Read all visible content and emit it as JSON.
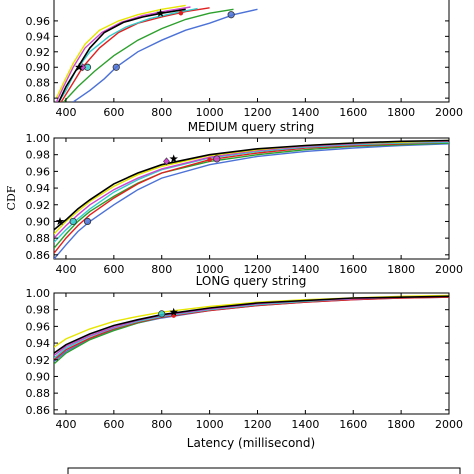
{
  "chart_data": [
    {
      "type": "line",
      "xlim": [
        350,
        2000
      ],
      "ylim": [
        0.855,
        1.0
      ],
      "xticks": [
        "400",
        "600",
        "800",
        "1000",
        "1200",
        "1400",
        "1600",
        "1800",
        "2000"
      ],
      "yticks": [
        "0.86",
        "0.88",
        "0.90",
        "0.92",
        "0.94",
        "0.96"
      ],
      "xlabel": "MEDIUM query string",
      "ylabel": "",
      "grid": false,
      "series": [
        {
          "color": "#4c72d8",
          "x": [
            430,
            500,
            560,
            610,
            700,
            800,
            900,
            1000,
            1100,
            1200
          ],
          "y": [
            0.855,
            0.87,
            0.885,
            0.9,
            0.92,
            0.935,
            0.948,
            0.957,
            0.968,
            0.975
          ],
          "marker": {
            "x": 610,
            "y": 0.9,
            "shape": "circle"
          },
          "marker2": {
            "x": 1090,
            "y": 0.968,
            "shape": "circle"
          }
        },
        {
          "color": "#2ca02c",
          "x": [
            390,
            450,
            520,
            600,
            700,
            800,
            900,
            1000,
            1100
          ],
          "y": [
            0.855,
            0.875,
            0.895,
            0.915,
            0.935,
            0.95,
            0.962,
            0.97,
            0.975
          ]
        },
        {
          "color": "#e02020",
          "x": [
            380,
            420,
            470,
            540,
            620,
            700,
            800,
            900,
            1000
          ],
          "y": [
            0.855,
            0.875,
            0.9,
            0.925,
            0.945,
            0.957,
            0.965,
            0.972,
            0.977
          ],
          "marker": {
            "x": 880,
            "y": 0.97,
            "shape": "dot"
          }
        },
        {
          "color": "#33cccc",
          "x": [
            370,
            400,
            440,
            500,
            580,
            650,
            750,
            850,
            950
          ],
          "y": [
            0.855,
            0.87,
            0.895,
            0.92,
            0.94,
            0.952,
            0.963,
            0.97,
            0.976
          ],
          "marker": {
            "x": 490,
            "y": 0.9,
            "shape": "circle"
          }
        },
        {
          "color": "#cc44cc",
          "x": [
            360,
            390,
            430,
            480,
            550,
            630,
            720,
            820,
            920
          ],
          "y": [
            0.855,
            0.875,
            0.9,
            0.925,
            0.945,
            0.958,
            0.967,
            0.973,
            0.978
          ],
          "marker": {
            "x": 470,
            "y": 0.9,
            "shape": "diamond"
          }
        },
        {
          "color": "#e6e600",
          "x": [
            360,
            390,
            430,
            480,
            540,
            620,
            700,
            800,
            900
          ],
          "y": [
            0.86,
            0.88,
            0.905,
            0.93,
            0.948,
            0.96,
            0.968,
            0.975,
            0.98
          ]
        },
        {
          "color": "#000000",
          "x": [
            370,
            400,
            450,
            500,
            560,
            640,
            720,
            800,
            900
          ],
          "y": [
            0.855,
            0.875,
            0.9,
            0.925,
            0.945,
            0.958,
            0.965,
            0.97,
            0.975
          ],
          "marker": {
            "x": 455,
            "y": 0.9,
            "shape": "star"
          },
          "marker2": {
            "x": 795,
            "y": 0.97,
            "shape": "star"
          }
        }
      ]
    },
    {
      "type": "line",
      "xlim": [
        350,
        2000
      ],
      "ylim": [
        0.855,
        1.0
      ],
      "xticks": [
        "400",
        "600",
        "800",
        "1000",
        "1200",
        "1400",
        "1600",
        "1800",
        "2000"
      ],
      "yticks": [
        "0.86",
        "0.88",
        "0.90",
        "0.92",
        "0.94",
        "0.96",
        "0.98",
        "1.00"
      ],
      "xlabel": "LONG query string",
      "ylabel": "CDF",
      "grid": false,
      "series": [
        {
          "color": "#4c72d8",
          "x": [
            350,
            400,
            450,
            500,
            600,
            700,
            800,
            1000,
            1200,
            1400,
            1600,
            1800,
            2000
          ],
          "y": [
            0.855,
            0.872,
            0.888,
            0.9,
            0.92,
            0.938,
            0.952,
            0.968,
            0.978,
            0.984,
            0.988,
            0.991,
            0.993
          ],
          "marker": {
            "x": 490,
            "y": 0.9,
            "shape": "circle"
          }
        },
        {
          "color": "#2ca02c",
          "x": [
            350,
            400,
            450,
            500,
            600,
            700,
            800,
            1000,
            1200,
            1400,
            1600,
            1800,
            2000
          ],
          "y": [
            0.868,
            0.885,
            0.9,
            0.912,
            0.93,
            0.946,
            0.958,
            0.972,
            0.98,
            0.986,
            0.99,
            0.992,
            0.994
          ]
        },
        {
          "color": "#e02020",
          "x": [
            350,
            400,
            450,
            500,
            600,
            700,
            800,
            1000,
            1200,
            1400,
            1600,
            1800,
            2000
          ],
          "y": [
            0.862,
            0.88,
            0.895,
            0.908,
            0.928,
            0.945,
            0.958,
            0.974,
            0.982,
            0.988,
            0.991,
            0.993,
            0.995
          ],
          "marker": {
            "x": 1000,
            "y": 0.974,
            "shape": "dot"
          }
        },
        {
          "color": "#33cccc",
          "x": [
            350,
            400,
            450,
            500,
            600,
            700,
            800,
            1000,
            1200,
            1400,
            1600,
            1800,
            2000
          ],
          "y": [
            0.875,
            0.89,
            0.903,
            0.915,
            0.935,
            0.95,
            0.962,
            0.976,
            0.984,
            0.989,
            0.992,
            0.994,
            0.995
          ],
          "marker": {
            "x": 430,
            "y": 0.9,
            "shape": "circle"
          }
        },
        {
          "color": "#cc44cc",
          "x": [
            350,
            400,
            450,
            500,
            600,
            700,
            800,
            1000,
            1200,
            1400,
            1600,
            1800,
            2000
          ],
          "y": [
            0.88,
            0.895,
            0.908,
            0.92,
            0.938,
            0.952,
            0.963,
            0.977,
            0.985,
            0.99,
            0.993,
            0.995,
            0.996
          ],
          "marker": {
            "x": 1030,
            "y": 0.975,
            "shape": "circle"
          },
          "marker2": {
            "x": 820,
            "y": 0.972,
            "shape": "diamond"
          }
        },
        {
          "color": "#e6e600",
          "x": [
            350,
            400,
            450,
            500,
            600,
            700,
            800,
            1000,
            1200,
            1400,
            1600,
            1800,
            2000
          ],
          "y": [
            0.885,
            0.9,
            0.912,
            0.924,
            0.942,
            0.956,
            0.966,
            0.979,
            0.986,
            0.991,
            0.994,
            0.995,
            0.997
          ]
        },
        {
          "color": "#000000",
          "x": [
            350,
            400,
            450,
            500,
            600,
            700,
            800,
            1000,
            1200,
            1400,
            1600,
            1800,
            2000
          ],
          "y": [
            0.89,
            0.902,
            0.915,
            0.926,
            0.945,
            0.958,
            0.968,
            0.98,
            0.987,
            0.991,
            0.994,
            0.996,
            0.997
          ],
          "marker": {
            "x": 375,
            "y": 0.9,
            "shape": "star"
          },
          "marker2": {
            "x": 850,
            "y": 0.975,
            "shape": "star"
          }
        }
      ]
    },
    {
      "type": "line",
      "xlim": [
        350,
        2000
      ],
      "ylim": [
        0.855,
        1.0
      ],
      "xticks": [
        "400",
        "600",
        "800",
        "1000",
        "1200",
        "1400",
        "1600",
        "1800",
        "2000"
      ],
      "yticks": [
        "0.86",
        "0.88",
        "0.90",
        "0.92",
        "0.94",
        "0.96",
        "0.98",
        "1.00"
      ],
      "xlabel": "Latency (millisecond)",
      "ylabel": "",
      "grid": false,
      "series": [
        {
          "color": "#4c72d8",
          "x": [
            350,
            400,
            500,
            600,
            700,
            800,
            1000,
            1200,
            1400,
            1600,
            1800,
            2000
          ],
          "y": [
            0.918,
            0.93,
            0.945,
            0.956,
            0.964,
            0.97,
            0.979,
            0.985,
            0.989,
            0.992,
            0.994,
            0.995
          ]
        },
        {
          "color": "#2ca02c",
          "x": [
            350,
            400,
            500,
            600,
            700,
            800,
            1000,
            1200,
            1400,
            1600,
            1800,
            2000
          ],
          "y": [
            0.915,
            0.928,
            0.944,
            0.955,
            0.964,
            0.971,
            0.98,
            0.986,
            0.99,
            0.993,
            0.995,
            0.996
          ]
        },
        {
          "color": "#e02020",
          "x": [
            350,
            400,
            500,
            600,
            700,
            800,
            1000,
            1200,
            1400,
            1600,
            1800,
            2000
          ],
          "y": [
            0.92,
            0.932,
            0.946,
            0.957,
            0.965,
            0.971,
            0.979,
            0.985,
            0.989,
            0.992,
            0.994,
            0.995
          ],
          "marker": {
            "x": 850,
            "y": 0.973,
            "shape": "dot"
          }
        },
        {
          "color": "#33cccc",
          "x": [
            350,
            400,
            500,
            600,
            700,
            800,
            1000,
            1200,
            1400,
            1600,
            1800,
            2000
          ],
          "y": [
            0.922,
            0.934,
            0.948,
            0.958,
            0.966,
            0.972,
            0.98,
            0.986,
            0.99,
            0.993,
            0.995,
            0.996
          ],
          "marker": {
            "x": 800,
            "y": 0.975,
            "shape": "circle"
          }
        },
        {
          "color": "#cc44cc",
          "x": [
            350,
            400,
            500,
            600,
            700,
            800,
            1000,
            1200,
            1400,
            1600,
            1800,
            2000
          ],
          "y": [
            0.925,
            0.936,
            0.949,
            0.959,
            0.967,
            0.973,
            0.981,
            0.987,
            0.991,
            0.993,
            0.995,
            0.996
          ]
        },
        {
          "color": "#e6e600",
          "x": [
            350,
            400,
            500,
            600,
            700,
            800,
            1000,
            1200,
            1400,
            1600,
            1800,
            2000
          ],
          "y": [
            0.935,
            0.945,
            0.957,
            0.966,
            0.972,
            0.977,
            0.984,
            0.989,
            0.992,
            0.994,
            0.996,
            0.997
          ]
        },
        {
          "color": "#000000",
          "x": [
            350,
            400,
            500,
            600,
            700,
            800,
            1000,
            1200,
            1400,
            1600,
            1800,
            2000
          ],
          "y": [
            0.928,
            0.938,
            0.951,
            0.961,
            0.968,
            0.974,
            0.982,
            0.988,
            0.991,
            0.994,
            0.995,
            0.996
          ],
          "marker": {
            "x": 850,
            "y": 0.977,
            "shape": "star"
          }
        }
      ]
    }
  ]
}
